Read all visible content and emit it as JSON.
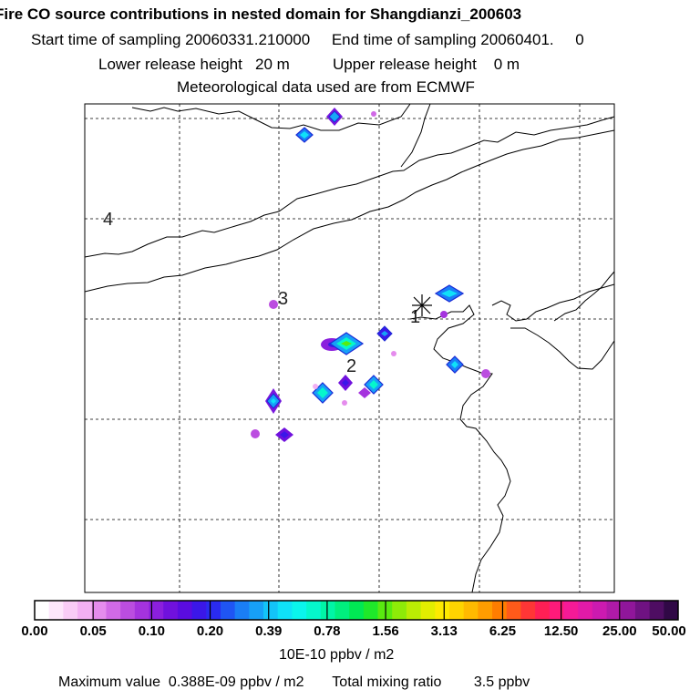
{
  "header": {
    "title": "Fire CO source contributions in nested domain for Shangdianzi_200603",
    "line2": "Start time of sampling 20060331.210000     End time of sampling 20060401.     0",
    "line3": "Lower release height   20 m          Upper release height    0 m",
    "line4": "Meteorological data used are from ECMWF"
  },
  "chart_data": {
    "type": "heatmap",
    "title": "Fire CO source contributions in nested domain for Shangdianzi_200603",
    "grid": true,
    "map_labels": [
      "4",
      "3",
      "2",
      "1"
    ],
    "receptor_marker": "asterisk",
    "colorbar": {
      "ticks": [
        "0.00",
        "0.05",
        "0.10",
        "0.20",
        "0.39",
        "0.78",
        "1.56",
        "3.13",
        "6.25",
        "12.50",
        "25.00",
        "50.00"
      ],
      "colors": [
        "#ffffff",
        "#fde6fb",
        "#f9ccf6",
        "#f3b0f3",
        "#e58ced",
        "#d16ae6",
        "#bb4de0",
        "#a533de",
        "#8b1fdd",
        "#7011dd",
        "#5a0ce0",
        "#3b17e8",
        "#2a2bf0",
        "#1f55f4",
        "#1a7ef6",
        "#17a0f7",
        "#13c4f8",
        "#0fe1f8",
        "#0af5ec",
        "#05f7cc",
        "#00f5a6",
        "#00ef7e",
        "#00e954",
        "#1fe92a",
        "#59ea10",
        "#8eeb08",
        "#bbec04",
        "#e2ee00",
        "#fdea00",
        "#ffd400",
        "#ffba00",
        "#ff9d00",
        "#ff7d00",
        "#ff5a1a",
        "#ff3636",
        "#ff1f55",
        "#ff1a7a",
        "#f51a97",
        "#e21aa8",
        "#cc1ab0",
        "#b01aa8",
        "#90169a",
        "#6f1282",
        "#4e0d62",
        "#300846"
      ],
      "unit": "10E-10 ppbv / m2"
    },
    "plumes": [
      {
        "id": "p1",
        "value": 0.3,
        "shape": "diamond"
      },
      {
        "id": "p2",
        "value": 0.3,
        "shape": "diamond"
      },
      {
        "id": "p3",
        "value": 0.06,
        "shape": "dot"
      },
      {
        "id": "p4",
        "value": 0.3,
        "shape": "diamond"
      },
      {
        "id": "p5",
        "value": 0.09,
        "shape": "dot"
      },
      {
        "id": "p6",
        "value": 0.12,
        "shape": "dot"
      },
      {
        "id": "p7",
        "value": 0.16,
        "shape": "blob"
      },
      {
        "id": "p8",
        "value": 0.78,
        "shape": "diamond"
      },
      {
        "id": "p9",
        "value": 0.25,
        "shape": "diamond"
      },
      {
        "id": "p10",
        "value": 0.06,
        "shape": "dot"
      },
      {
        "id": "p11",
        "value": 0.3,
        "shape": "diamond"
      },
      {
        "id": "p12",
        "value": 0.1,
        "shape": "dot"
      },
      {
        "id": "p13",
        "value": 0.2,
        "shape": "diamond"
      },
      {
        "id": "p14",
        "value": 0.5,
        "shape": "diamond"
      },
      {
        "id": "p15",
        "value": 0.45,
        "shape": "diamond"
      },
      {
        "id": "p16",
        "value": 0.18,
        "shape": "diamond"
      },
      {
        "id": "p17",
        "value": 0.3,
        "shape": "diamond"
      },
      {
        "id": "p18",
        "value": 0.2,
        "shape": "diamond"
      },
      {
        "id": "p19",
        "value": 0.11,
        "shape": "dot"
      }
    ]
  },
  "footer": {
    "text": "Maximum value  0.388E-09 ppbv / m2       Total mixing ratio        3.5 ppbv"
  }
}
